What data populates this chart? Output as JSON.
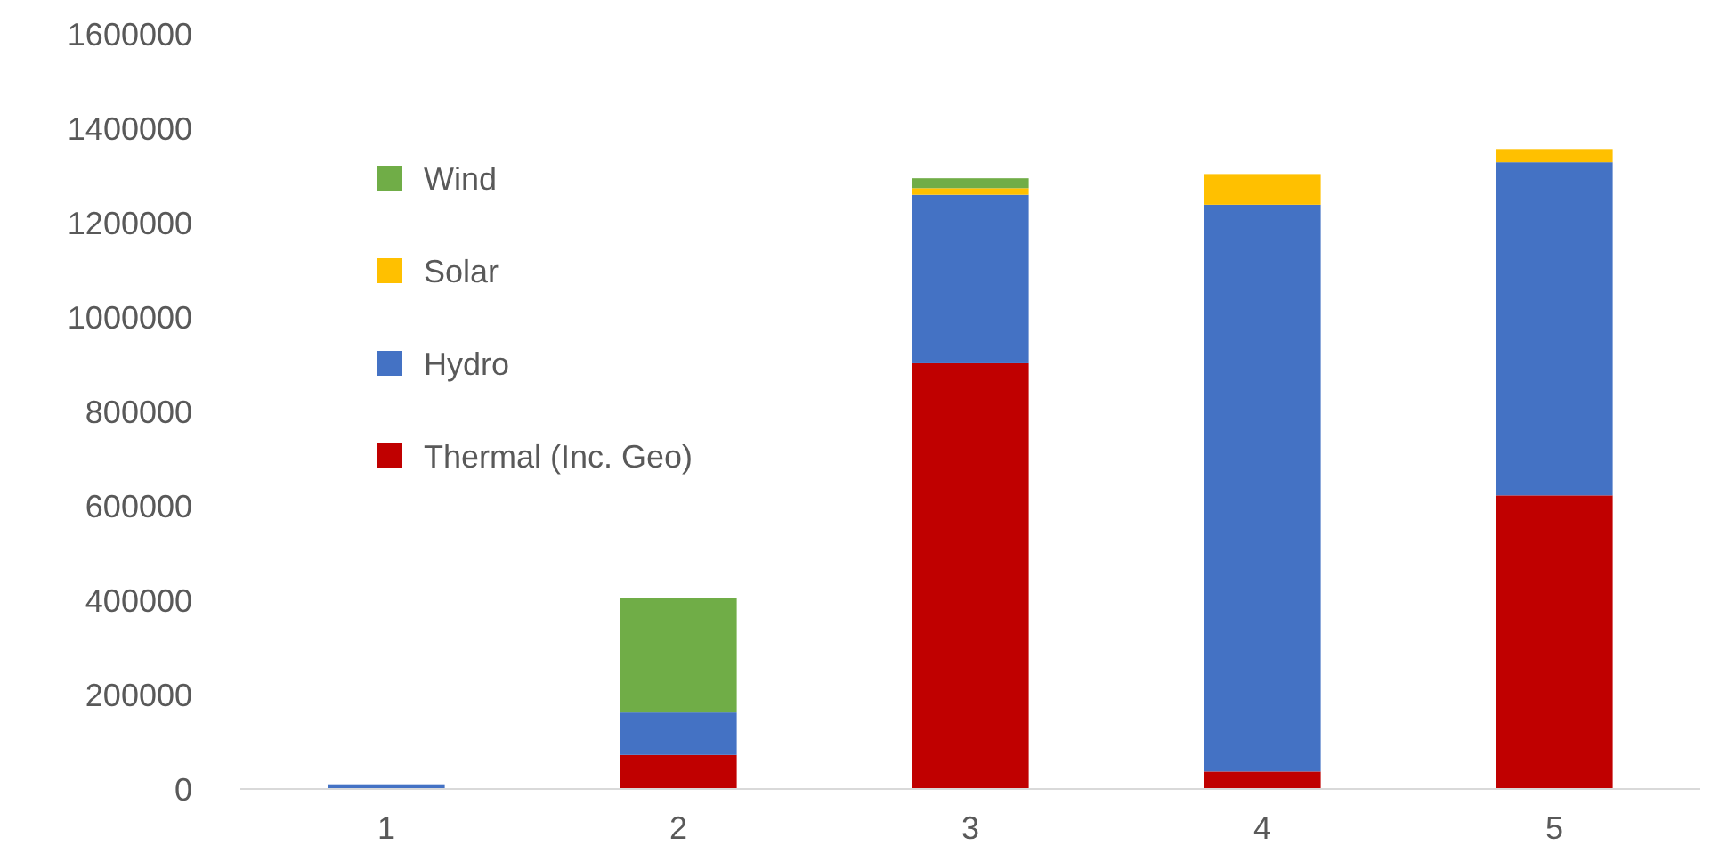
{
  "chart_data": {
    "type": "bar",
    "stacked": true,
    "categories": [
      "1",
      "2",
      "3",
      "4",
      "5"
    ],
    "series": [
      {
        "name": "Thermal (Inc. Geo)",
        "color": "#c00000",
        "values": [
          0,
          72000,
          902000,
          37000,
          622000
        ]
      },
      {
        "name": "Hydro",
        "color": "#4472c4",
        "values": [
          10000,
          90000,
          357000,
          1201000,
          706000
        ]
      },
      {
        "name": "Solar",
        "color": "#ffc000",
        "values": [
          0,
          0,
          14000,
          65000,
          28000
        ]
      },
      {
        "name": "Wind",
        "color": "#70ad47",
        "values": [
          0,
          242000,
          21000,
          0,
          0
        ]
      }
    ],
    "ylim": [
      0,
      1600000
    ],
    "yticks": [
      0,
      200000,
      400000,
      600000,
      800000,
      1000000,
      1200000,
      1400000,
      1600000
    ],
    "grid": false,
    "legend": "top left"
  }
}
